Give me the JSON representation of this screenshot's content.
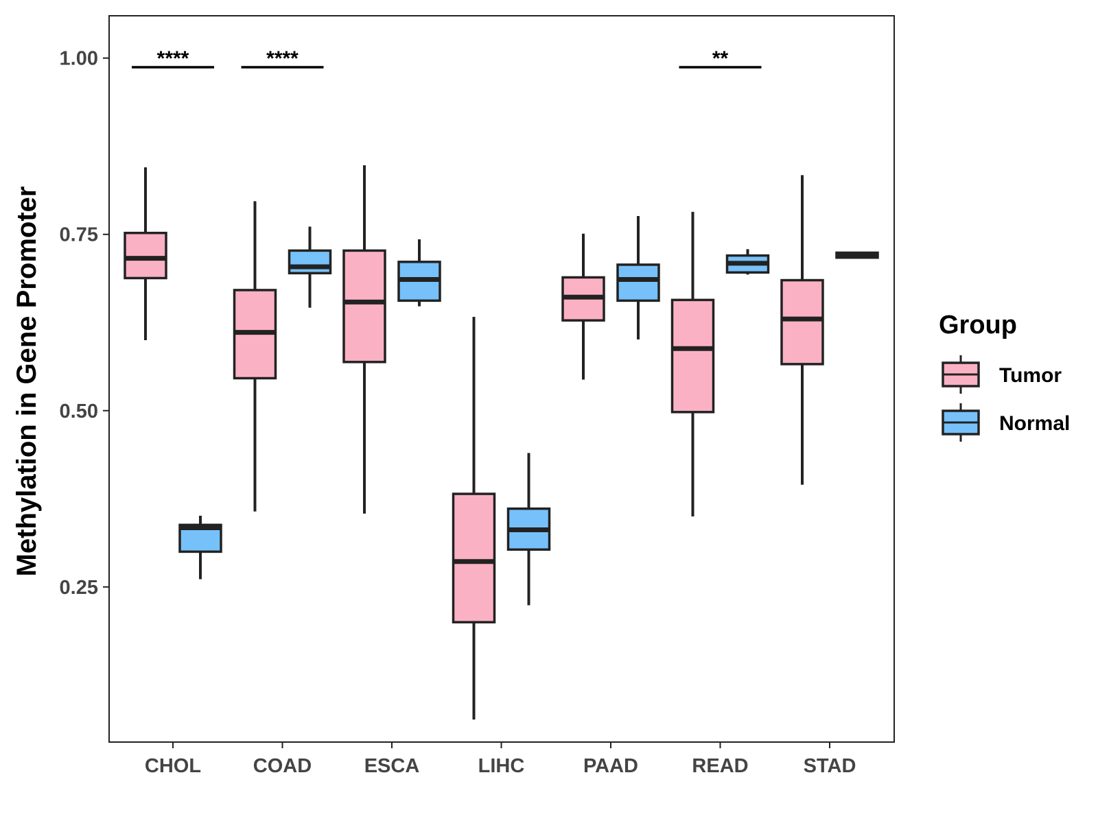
{
  "chart_data": {
    "type": "boxplot",
    "title": "",
    "xlabel": "",
    "ylabel": "Methylation in Gene Promoter",
    "ylim": [
      0.03,
      1.06
    ],
    "yticks": [
      0.25,
      0.5,
      0.75,
      1.0
    ],
    "ytick_labels": [
      "0.25",
      "0.50",
      "0.75",
      "1.00"
    ],
    "categories": [
      "CHOL",
      "COAD",
      "ESCA",
      "LIHC",
      "PAAD",
      "READ",
      "STAD"
    ],
    "grid": false,
    "legend": {
      "title": "Group",
      "position": "right",
      "entries": [
        {
          "name": "Tumor",
          "color": "#FBB1C4"
        },
        {
          "name": "Normal",
          "color": "#77C1FA"
        }
      ]
    },
    "series": [
      {
        "name": "Tumor",
        "color": "#FBB1C4",
        "boxes": [
          {
            "category": "CHOL",
            "min": 0.6,
            "q1": 0.688,
            "median": 0.716,
            "q3": 0.752,
            "max": 0.845
          },
          {
            "category": "COAD",
            "min": 0.357,
            "q1": 0.546,
            "median": 0.611,
            "q3": 0.671,
            "max": 0.797
          },
          {
            "category": "ESCA",
            "min": 0.354,
            "q1": 0.569,
            "median": 0.654,
            "q3": 0.727,
            "max": 0.848
          },
          {
            "category": "LIHC",
            "min": 0.062,
            "q1": 0.2,
            "median": 0.286,
            "q3": 0.382,
            "max": 0.633
          },
          {
            "category": "PAAD",
            "min": 0.544,
            "q1": 0.628,
            "median": 0.661,
            "q3": 0.689,
            "max": 0.751
          },
          {
            "category": "READ",
            "min": 0.35,
            "q1": 0.498,
            "median": 0.588,
            "q3": 0.657,
            "max": 0.782
          },
          {
            "category": "STAD",
            "min": 0.395,
            "q1": 0.566,
            "median": 0.63,
            "q3": 0.685,
            "max": 0.834
          }
        ]
      },
      {
        "name": "Normal",
        "color": "#77C1FA",
        "boxes": [
          {
            "category": "CHOL",
            "min": 0.261,
            "q1": 0.3,
            "median": 0.334,
            "q3": 0.338,
            "max": 0.351
          },
          {
            "category": "COAD",
            "min": 0.646,
            "q1": 0.695,
            "median": 0.704,
            "q3": 0.727,
            "max": 0.761
          },
          {
            "category": "ESCA",
            "min": 0.648,
            "q1": 0.656,
            "median": 0.686,
            "q3": 0.711,
            "max": 0.743
          },
          {
            "category": "LIHC",
            "min": 0.224,
            "q1": 0.303,
            "median": 0.331,
            "q3": 0.361,
            "max": 0.44
          },
          {
            "category": "PAAD",
            "min": 0.601,
            "q1": 0.656,
            "median": 0.686,
            "q3": 0.707,
            "max": 0.776
          },
          {
            "category": "READ",
            "min": 0.693,
            "q1": 0.696,
            "median": 0.709,
            "q3": 0.72,
            "max": 0.729
          },
          {
            "category": "STAD",
            "min": 0.716,
            "q1": 0.717,
            "median": 0.72,
            "q3": 0.724,
            "max": 0.725
          }
        ]
      }
    ],
    "annotations": [
      {
        "category": "CHOL",
        "text": "****",
        "y": 0.987
      },
      {
        "category": "COAD",
        "text": "****",
        "y": 0.987
      },
      {
        "category": "READ",
        "text": "**",
        "y": 0.987
      }
    ]
  }
}
